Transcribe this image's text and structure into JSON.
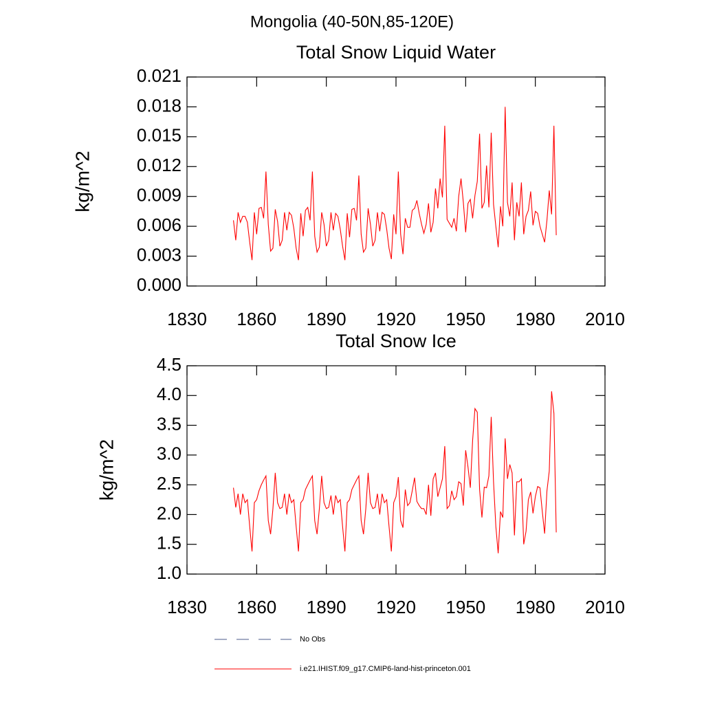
{
  "title": "Mongolia (40-50N,85-120E)",
  "legend": [
    {
      "name": "No Obs",
      "color": "#4a5a8a",
      "dash": true
    }
  ],
  "chart_data": [
    {
      "type": "line",
      "title": "Total Snow Liquid Water",
      "y_label": "kg/m^2",
      "xlim": [
        1830,
        2010
      ],
      "xticks": [
        1830,
        1860,
        1890,
        1920,
        1950,
        1980,
        2010
      ],
      "ylim": [
        0,
        0.021
      ],
      "yticks": [
        {
          "value": 0,
          "label": "0.000"
        },
        0.003,
        0.006,
        0.009,
        0.012,
        0.015,
        0.018,
        0.021
      ],
      "x": [
        1850,
        1851,
        1852,
        1853,
        1854,
        1855,
        1856,
        1857,
        1858,
        1859,
        1860,
        1861,
        1862,
        1863,
        1864,
        1865,
        1866,
        1867,
        1868,
        1869,
        1870,
        1871,
        1872,
        1873,
        1874,
        1875,
        1876,
        1877,
        1878,
        1879,
        1880,
        1881,
        1882,
        1883,
        1884,
        1885,
        1886,
        1887,
        1888,
        1889,
        1890,
        1891,
        1892,
        1893,
        1894,
        1895,
        1896,
        1897,
        1898,
        1899,
        1900,
        1901,
        1902,
        1903,
        1904,
        1905,
        1906,
        1907,
        1908,
        1909,
        1910,
        1911,
        1912,
        1913,
        1914,
        1915,
        1916,
        1917,
        1918,
        1919,
        1920,
        1921,
        1922,
        1923,
        1924,
        1925,
        1926,
        1927,
        1928,
        1929,
        1930,
        1931,
        1932,
        1933,
        1934,
        1935,
        1936,
        1937,
        1938,
        1939,
        1940,
        1941,
        1942,
        1943,
        1944,
        1945,
        1946,
        1947,
        1948,
        1949,
        1950,
        1951,
        1952,
        1953,
        1954,
        1955,
        1956,
        1957,
        1958,
        1959,
        1960,
        1961,
        1962,
        1963,
        1964,
        1965,
        1966,
        1967,
        1968,
        1969,
        1970,
        1971,
        1972,
        1973,
        1974,
        1975,
        1976,
        1977,
        1978,
        1979,
        1980,
        1981,
        1982,
        1983,
        1984,
        1985,
        1986,
        1987,
        1988,
        1989
      ],
      "series": [
        {
          "name": "i.e21.IHIST.f09_g17.CMIP6-land-hist-princeton.001",
          "color": "#ff0000",
          "values": [
            0.0066,
            0.0046,
            0.0074,
            0.0064,
            0.007,
            0.007,
            0.0064,
            0.0044,
            0.0026,
            0.0074,
            0.0052,
            0.0078,
            0.0079,
            0.0068,
            0.0115,
            0.0062,
            0.0035,
            0.0038,
            0.0077,
            0.0065,
            0.004,
            0.0046,
            0.0074,
            0.0056,
            0.0074,
            0.0071,
            0.0058,
            0.0038,
            0.0026,
            0.0073,
            0.005,
            0.0076,
            0.0079,
            0.0066,
            0.0115,
            0.005,
            0.0034,
            0.0039,
            0.0074,
            0.0062,
            0.004,
            0.0046,
            0.0074,
            0.0056,
            0.0073,
            0.007,
            0.0057,
            0.004,
            0.0026,
            0.0073,
            0.0049,
            0.0077,
            0.0078,
            0.0066,
            0.0111,
            0.0052,
            0.0034,
            0.0038,
            0.0078,
            0.0062,
            0.004,
            0.0046,
            0.0074,
            0.0055,
            0.0074,
            0.0072,
            0.0057,
            0.0038,
            0.0027,
            0.0072,
            0.0052,
            0.0115,
            0.0052,
            0.0032,
            0.0068,
            0.0059,
            0.0059,
            0.0076,
            0.0078,
            0.0086,
            0.0073,
            0.0062,
            0.0053,
            0.0062,
            0.0083,
            0.0054,
            0.0064,
            0.0098,
            0.0078,
            0.0108,
            0.0089,
            0.0161,
            0.0067,
            0.0063,
            0.0059,
            0.0068,
            0.0055,
            0.009,
            0.0108,
            0.0084,
            0.0054,
            0.0083,
            0.0087,
            0.0068,
            0.0091,
            0.0105,
            0.0153,
            0.0078,
            0.0084,
            0.0121,
            0.0079,
            0.0154,
            0.0082,
            0.006,
            0.0039,
            0.008,
            0.006,
            0.018,
            0.0084,
            0.007,
            0.0104,
            0.0046,
            0.0084,
            0.007,
            0.0104,
            0.0052,
            0.007,
            0.0076,
            0.0095,
            0.0061,
            0.0075,
            0.0073,
            0.006,
            0.0052,
            0.0044,
            0.0066,
            0.0096,
            0.0072,
            0.0161,
            0.0051
          ]
        }
      ]
    },
    {
      "type": "line",
      "title": "Total Snow Ice",
      "y_label": "kg/m^2",
      "xlim": [
        1830,
        2010
      ],
      "xticks": [
        1830,
        1860,
        1890,
        1920,
        1950,
        1980,
        2010
      ],
      "ylim": [
        1,
        4.5
      ],
      "yticks": [
        {
          "value": 1,
          "label": "1.0"
        },
        1.5,
        {
          "value": 2,
          "label": "2.0"
        },
        2.5,
        {
          "value": 3,
          "label": "3.0"
        },
        3.5,
        {
          "value": 4,
          "label": "4.0"
        },
        4.5
      ],
      "x": [
        1850,
        1851,
        1852,
        1853,
        1854,
        1855,
        1856,
        1857,
        1858,
        1859,
        1860,
        1861,
        1862,
        1863,
        1864,
        1865,
        1866,
        1867,
        1868,
        1869,
        1870,
        1871,
        1872,
        1873,
        1874,
        1875,
        1876,
        1877,
        1878,
        1879,
        1880,
        1881,
        1882,
        1883,
        1884,
        1885,
        1886,
        1887,
        1888,
        1889,
        1890,
        1891,
        1892,
        1893,
        1894,
        1895,
        1896,
        1897,
        1898,
        1899,
        1900,
        1901,
        1902,
        1903,
        1904,
        1905,
        1906,
        1907,
        1908,
        1909,
        1910,
        1911,
        1912,
        1913,
        1914,
        1915,
        1916,
        1917,
        1918,
        1919,
        1920,
        1921,
        1922,
        1923,
        1924,
        1925,
        1926,
        1927,
        1928,
        1929,
        1930,
        1931,
        1932,
        1933,
        1934,
        1935,
        1936,
        1937,
        1938,
        1939,
        1940,
        1941,
        1942,
        1943,
        1944,
        1945,
        1946,
        1947,
        1948,
        1949,
        1950,
        1951,
        1952,
        1953,
        1954,
        1955,
        1956,
        1957,
        1958,
        1959,
        1960,
        1961,
        1962,
        1963,
        1964,
        1965,
        1966,
        1967,
        1968,
        1969,
        1970,
        1971,
        1972,
        1973,
        1974,
        1975,
        1976,
        1977,
        1978,
        1979,
        1980,
        1981,
        1982,
        1983,
        1984,
        1985,
        1986,
        1987,
        1988,
        1989
      ],
      "series": [
        {
          "color": "#ff0000",
          "values": [
            2.45,
            2.12,
            2.35,
            2.0,
            2.35,
            2.2,
            2.25,
            1.8,
            1.38,
            2.2,
            2.25,
            2.4,
            2.5,
            2.58,
            2.65,
            1.9,
            1.67,
            2.1,
            2.7,
            2.2,
            2.1,
            2.12,
            2.35,
            2.0,
            2.35,
            2.2,
            2.25,
            1.8,
            1.38,
            2.2,
            2.25,
            2.42,
            2.5,
            2.58,
            2.65,
            1.9,
            1.67,
            2.1,
            2.65,
            2.2,
            2.1,
            2.12,
            2.32,
            2.0,
            2.32,
            2.2,
            2.25,
            1.8,
            1.38,
            2.2,
            2.25,
            2.42,
            2.5,
            2.58,
            2.65,
            1.9,
            1.67,
            2.1,
            2.7,
            2.2,
            2.1,
            2.12,
            2.35,
            2.0,
            2.35,
            2.2,
            2.25,
            1.8,
            1.38,
            2.2,
            2.3,
            2.63,
            1.9,
            1.78,
            2.42,
            2.15,
            2.2,
            2.4,
            2.62,
            2.22,
            2.15,
            2.1,
            2.1,
            2.0,
            2.5,
            1.98,
            2.6,
            2.7,
            2.3,
            2.45,
            2.6,
            3.15,
            2.1,
            2.15,
            2.4,
            2.25,
            2.3,
            2.55,
            2.52,
            2.15,
            3.08,
            2.8,
            2.45,
            3.25,
            3.78,
            3.72,
            2.42,
            1.95,
            2.46,
            2.45,
            2.65,
            3.64,
            2.55,
            1.8,
            1.35,
            2.05,
            1.95,
            3.28,
            2.6,
            2.84,
            2.7,
            1.65,
            2.55,
            2.55,
            2.6,
            1.5,
            1.72,
            2.25,
            2.38,
            2.02,
            2.3,
            2.47,
            2.45,
            2.05,
            1.68,
            2.4,
            2.73,
            4.07,
            3.7,
            1.7
          ]
        }
      ]
    }
  ]
}
